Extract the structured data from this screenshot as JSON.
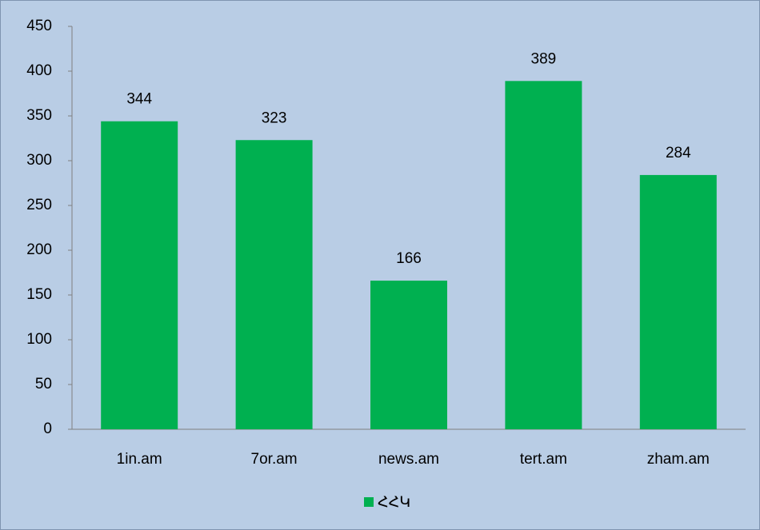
{
  "chart_data": {
    "type": "bar",
    "categories": [
      "1in.am",
      "7or.am",
      "news.am",
      "tert.am",
      "zham.am"
    ],
    "series": [
      {
        "name": "ՀՀԿ",
        "color": "#00b050",
        "values": [
          344,
          323,
          166,
          389,
          284
        ]
      }
    ],
    "ylim": [
      0,
      450
    ],
    "yticks": [
      0,
      50,
      100,
      150,
      200,
      250,
      300,
      350,
      400,
      450
    ],
    "grid": false,
    "legend": "bottom"
  }
}
